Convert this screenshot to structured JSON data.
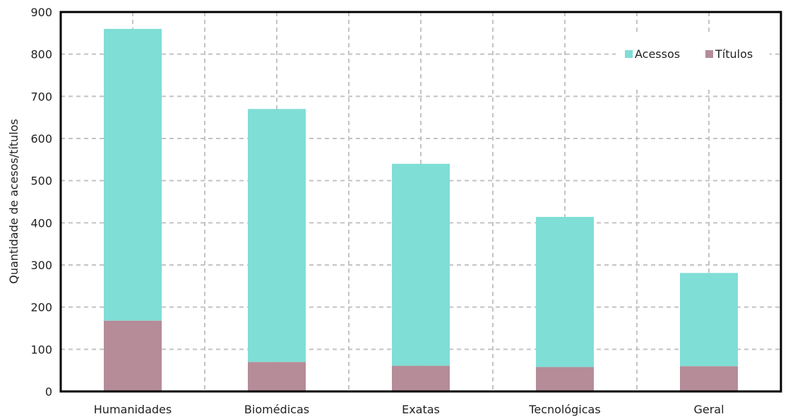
{
  "chart_data": {
    "type": "bar",
    "stacked": true,
    "categories": [
      "Humanidades",
      "Biomédicas",
      "Exatas",
      "Tecnológicas",
      "Geral"
    ],
    "series": [
      {
        "name": "Títulos",
        "values": [
          168,
          70,
          61,
          58,
          60
        ],
        "color": "#b58c98"
      },
      {
        "name": "Acessos",
        "values": [
          692,
          600,
          479,
          356,
          221
        ],
        "color": "#7fded6"
      }
    ],
    "totals": [
      860,
      670,
      540,
      414,
      281
    ],
    "ylabel": "Quantidade de acesos/títulos",
    "ylim": [
      0,
      900
    ],
    "yticks": [
      0,
      100,
      200,
      300,
      400,
      500,
      600,
      700,
      800,
      900
    ],
    "grid": true,
    "legend": {
      "placement": "top-right",
      "items": [
        {
          "label": "Acessos",
          "color": "#7fded6"
        },
        {
          "label": "Títulos",
          "color": "#b58c98"
        }
      ]
    }
  }
}
